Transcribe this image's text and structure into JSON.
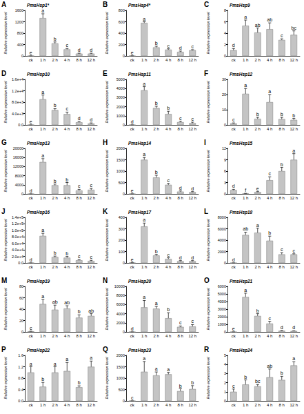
{
  "chart_data": [
    {
      "type": "bar",
      "panel": "A",
      "title": "PmsHsp1*",
      "ylabel": "Relative expression level",
      "color": "#c4c4c4",
      "grid": false,
      "categories": [
        "ck",
        "1 h",
        "2 h",
        "4 h",
        "8 h",
        "12 h"
      ],
      "values": [
        1,
        1330,
        440,
        230,
        80,
        80
      ],
      "errors": [
        0.2,
        150,
        50,
        30,
        15,
        15
      ],
      "letters": [
        "e",
        "a",
        "b",
        "c",
        "d",
        "d"
      ],
      "ylim": [
        0,
        1600
      ],
      "yticks": [
        0,
        400,
        800,
        1200,
        1600
      ]
    },
    {
      "type": "bar",
      "panel": "B",
      "title": "PmsHsp4*",
      "ylabel": "Relative expression level",
      "color": "#c4c4c4",
      "grid": false,
      "categories": [
        "ck",
        "1 h",
        "2 h",
        "4 h",
        "8 h",
        "12 h"
      ],
      "values": [
        1,
        580,
        150,
        110,
        70,
        100
      ],
      "errors": [
        0.2,
        20,
        20,
        15,
        15,
        10
      ],
      "letters": [
        "e",
        "a",
        "b",
        "c",
        "d",
        "c"
      ],
      "ylim": [
        0,
        800
      ],
      "yticks": [
        0,
        200,
        400,
        600,
        800
      ]
    },
    {
      "type": "bar",
      "panel": "C",
      "title": "PmsHsp9",
      "ylabel": "Relative expression level",
      "color": "#c4c4c4",
      "grid": false,
      "categories": [
        "ck",
        "1 h",
        "2 h",
        "4 h",
        "8 h",
        "12 h"
      ],
      "values": [
        1,
        5.3,
        4.1,
        4.7,
        2.8,
        3.7
      ],
      "errors": [
        0.3,
        1.0,
        0.8,
        1.1,
        0.2,
        0.7
      ],
      "letters": [
        "d",
        "a",
        "ab",
        "ab",
        "c",
        "bc"
      ],
      "ylim": [
        0,
        8
      ],
      "yticks": [
        0,
        2,
        4,
        6,
        8
      ]
    },
    {
      "type": "bar",
      "panel": "D",
      "title": "PmsHsp10",
      "ylabel": "Relative expression level",
      "color": "#c4c4c4",
      "grid": false,
      "categories": [
        "ck",
        "1 h",
        "2 h",
        "4 h",
        "8 h",
        "12 h"
      ],
      "values": [
        1,
        9000,
        5200,
        3800,
        900,
        500
      ],
      "errors": [
        0.2,
        1500,
        500,
        700,
        300,
        200
      ],
      "letters": [
        "e",
        "a",
        "b",
        "c",
        "d",
        "d"
      ],
      "ylim": [
        0,
        16000
      ],
      "yticks": [
        {
          "value": 0,
          "label": "0.0"
        },
        {
          "value": 4000,
          "label": "4.0e+3"
        },
        {
          "value": 8000,
          "label": "8.0e+3"
        },
        {
          "value": 12000,
          "label": "1.2e+4"
        },
        {
          "value": 16000,
          "label": "1.6e+4"
        }
      ]
    },
    {
      "type": "bar",
      "panel": "E",
      "title": "PmsHsp11",
      "ylabel": "Relative expression level",
      "color": "#c4c4c4",
      "grid": false,
      "categories": [
        "ck",
        "1 h",
        "2 h",
        "4 h",
        "8 h",
        "12 h"
      ],
      "values": [
        1,
        3800,
        1850,
        1200,
        300,
        200
      ],
      "errors": [
        0.2,
        400,
        200,
        300,
        100,
        100
      ],
      "letters": [
        "d",
        "a",
        "b",
        "b",
        "c",
        "c"
      ],
      "ylim": [
        0,
        5000
      ],
      "yticks": [
        0,
        1000,
        2000,
        3000,
        4000,
        5000
      ]
    },
    {
      "type": "bar",
      "panel": "F",
      "title": "PmsHsp12",
      "ylabel": "Relative expression level",
      "color": "#c4c4c4",
      "grid": false,
      "categories": [
        "ck",
        "1 h",
        "2 h",
        "4 h",
        "8 h",
        "12 h"
      ],
      "values": [
        1,
        20.5,
        4,
        15,
        3.8,
        3.3
      ],
      "errors": [
        0.3,
        3.5,
        1,
        5,
        1.2,
        1
      ],
      "letters": [
        "c",
        "a",
        "b",
        "a",
        "b",
        "b"
      ],
      "ylim": [
        0,
        30
      ],
      "yticks": [
        0,
        10,
        20,
        30
      ]
    },
    {
      "type": "bar",
      "panel": "G",
      "title": "PmsHsp13",
      "ylabel": "Relative expression level",
      "color": "#c4c4c4",
      "grid": false,
      "categories": [
        "ck",
        "1 h",
        "2 h",
        "4 h",
        "8 h",
        "12 h"
      ],
      "values": [
        1,
        14000,
        3800,
        3800,
        1500,
        1800
      ],
      "errors": [
        0.2,
        1500,
        500,
        1200,
        500,
        600
      ],
      "letters": [
        "d",
        "a",
        "b",
        "b",
        "c",
        "c"
      ],
      "ylim": [
        0,
        20000
      ],
      "yticks": [
        0,
        4000,
        8000,
        12000,
        16000,
        20000
      ]
    },
    {
      "type": "bar",
      "panel": "H",
      "title": "PmsHsp14",
      "ylabel": "Relative expression level",
      "color": "#c4c4c4",
      "grid": false,
      "categories": [
        "ck",
        "1 h",
        "2 h",
        "4 h",
        "8 h",
        "12 h"
      ],
      "values": [
        1,
        1500,
        720,
        400,
        100,
        80
      ],
      "errors": [
        0.2,
        100,
        100,
        60,
        30,
        20
      ],
      "letters": [
        "e",
        "a",
        "b",
        "c",
        "d",
        "d"
      ],
      "ylim": [
        0,
        2000
      ],
      "yticks": [
        0,
        500,
        1000,
        1500,
        2000
      ]
    },
    {
      "type": "bar",
      "panel": "I",
      "title": "PmsHsp15",
      "ylabel": "Relative expression level",
      "color": "#c4c4c4",
      "grid": false,
      "categories": [
        "ck",
        "1 h",
        "2 h",
        "4 h",
        "8 h",
        "12 h"
      ],
      "values": [
        1,
        0.1,
        0.5,
        3.6,
        6,
        9
      ],
      "errors": [
        0.2,
        0.05,
        0.1,
        0.9,
        1,
        1.6
      ],
      "letters": [
        "d",
        "f",
        "e",
        "c",
        "b",
        "a"
      ],
      "ylim": [
        0,
        12
      ],
      "yticks": [
        0,
        3,
        6,
        9,
        12
      ]
    },
    {
      "type": "bar",
      "panel": "J",
      "title": "PmsHsp16",
      "ylabel": "Relative expression level",
      "color": "#c4c4c4",
      "grid": false,
      "categories": [
        "ck",
        "1 h",
        "2 h",
        "4 h",
        "8 h",
        "12 h"
      ],
      "values": [
        1,
        83000,
        18000,
        16000,
        8000,
        6000
      ],
      "errors": [
        0.2,
        8000,
        3000,
        4000,
        2000,
        2000
      ],
      "letters": [
        "d",
        "a",
        "b",
        "b",
        "c",
        "c"
      ],
      "ylim": [
        0,
        140000
      ],
      "yticks": [
        {
          "value": 0,
          "label": "0.0"
        },
        {
          "value": 20000,
          "label": "2.0e+4"
        },
        {
          "value": 40000,
          "label": "4.0e+4"
        },
        {
          "value": 60000,
          "label": "6.0e+4"
        },
        {
          "value": 80000,
          "label": "8.0e+4"
        },
        {
          "value": 100000,
          "label": "1.0e+5"
        },
        {
          "value": 120000,
          "label": "1.2e+5"
        },
        {
          "value": 140000,
          "label": "1.4e+5"
        }
      ]
    },
    {
      "type": "bar",
      "panel": "K",
      "title": "PmsHsp17",
      "ylabel": "Relative expression level",
      "color": "#c4c4c4",
      "grid": false,
      "categories": [
        "ck",
        "1 h",
        "2 h",
        "4 h",
        "8 h",
        "12 h"
      ],
      "values": [
        1,
        320,
        65,
        35,
        15,
        15
      ],
      "errors": [
        0.2,
        30,
        10,
        10,
        5,
        5
      ],
      "letters": [
        "e",
        "a",
        "b",
        "c",
        "d",
        "d"
      ],
      "ylim": [
        0,
        400
      ],
      "yticks": [
        0,
        100,
        200,
        300,
        400
      ]
    },
    {
      "type": "bar",
      "panel": "L",
      "title": "PmsHsp18",
      "ylabel": "Relative expression level",
      "color": "#c4c4c4",
      "grid": false,
      "categories": [
        "ck",
        "1 h",
        "2 h",
        "4 h",
        "8 h",
        "12 h"
      ],
      "values": [
        1,
        4900,
        5300,
        3900,
        1500,
        1500
      ],
      "errors": [
        0.2,
        500,
        800,
        800,
        300,
        100
      ],
      "letters": [
        "d",
        "ab",
        "a",
        "b",
        "c",
        "c"
      ],
      "ylim": [
        0,
        8000
      ],
      "yticks": [
        0,
        2000,
        4000,
        6000,
        8000
      ]
    },
    {
      "type": "bar",
      "panel": "M",
      "title": "PmsHsp19",
      "ylabel": "Relative expression level",
      "color": "#c4c4c4",
      "grid": false,
      "categories": [
        "ck",
        "1 h",
        "2 h",
        "4 h",
        "8 h",
        "12 h"
      ],
      "values": [
        1,
        49,
        39,
        41,
        25,
        28
      ],
      "errors": [
        0.3,
        8,
        8,
        5,
        5,
        4
      ],
      "letters": [
        "c",
        "a",
        "ab",
        "ab",
        "b",
        "ab"
      ],
      "ylim": [
        0,
        80
      ],
      "yticks": [
        0,
        20,
        40,
        60,
        80
      ]
    },
    {
      "type": "bar",
      "panel": "N",
      "title": "PmsHsp20",
      "ylabel": "Relative expression level",
      "color": "#c4c4c4",
      "grid": false,
      "categories": [
        "ck",
        "1 h",
        "2 h",
        "4 h",
        "8 h",
        "12 h"
      ],
      "values": [
        1,
        5400,
        5100,
        3000,
        1100,
        1200
      ],
      "errors": [
        0.2,
        1500,
        500,
        1200,
        200,
        400
      ],
      "letters": [
        "d",
        "a",
        "a",
        "b",
        "c",
        "c"
      ],
      "ylim": [
        0,
        10000
      ],
      "yticks": [
        0,
        2000,
        4000,
        6000,
        8000,
        10000
      ]
    },
    {
      "type": "bar",
      "panel": "O",
      "title": "PmsHsp21",
      "ylabel": "Relative expression level",
      "color": "#c4c4c4",
      "grid": false,
      "categories": [
        "ck",
        "1 h",
        "2 h",
        "4 h",
        "8 h",
        "12 h"
      ],
      "values": [
        1,
        4600,
        2100,
        1100,
        150,
        120
      ],
      "errors": [
        0.2,
        500,
        300,
        300,
        50,
        30
      ],
      "letters": [
        "e",
        "a",
        "b",
        "c",
        "d",
        "d"
      ],
      "ylim": [
        0,
        6000
      ],
      "yticks": [
        0,
        1000,
        2000,
        3000,
        4000,
        5000,
        6000
      ]
    },
    {
      "type": "bar",
      "panel": "P",
      "title": "PmsHsp22",
      "ylabel": "Relative expression level",
      "color": "#c4c4c4",
      "grid": false,
      "categories": [
        "ck",
        "1 h",
        "2 h",
        "4 h",
        "8 h",
        "12 h"
      ],
      "values": [
        1.0,
        0.5,
        1.0,
        1.05,
        0.48,
        1.2
      ],
      "errors": [
        0.2,
        0.15,
        0.2,
        0.3,
        0.05,
        0.2
      ],
      "letters": [
        "a",
        "b",
        "a",
        "a",
        "b",
        "a"
      ],
      "ylim": [
        0,
        1.6
      ],
      "yticks": [
        {
          "value": 0,
          "label": "0.0"
        },
        {
          "value": 0.4,
          "label": "0.4"
        },
        {
          "value": 0.8,
          "label": "0.8"
        },
        {
          "value": 1.2,
          "label": "1.2"
        },
        {
          "value": 1.6,
          "label": "1.6"
        }
      ]
    },
    {
      "type": "bar",
      "panel": "Q",
      "title": "PmsHsp23",
      "ylabel": "Relative expression level",
      "color": "#c4c4c4",
      "grid": false,
      "categories": [
        "ck",
        "1 h",
        "2 h",
        "4 h",
        "8 h",
        "12 h"
      ],
      "values": [
        1,
        1280,
        1120,
        1170,
        430,
        520
      ],
      "errors": [
        0.2,
        450,
        150,
        80,
        100,
        150
      ],
      "letters": [
        "c",
        "a",
        "a",
        "a",
        "b",
        "b"
      ],
      "ylim": [
        0,
        2000
      ],
      "yticks": [
        0,
        500,
        1000,
        1500,
        2000
      ]
    },
    {
      "type": "bar",
      "panel": "R",
      "title": "PmsHsp24",
      "ylabel": "Relative expression level",
      "color": "#c4c4c4",
      "grid": false,
      "categories": [
        "ck",
        "1 h",
        "2 h",
        "4 h",
        "8 h",
        "12 h"
      ],
      "values": [
        1,
        1.8,
        1.6,
        2.6,
        2.3,
        3.9
      ],
      "errors": [
        0.3,
        0.5,
        0.2,
        0.9,
        0.4,
        0.4
      ],
      "letters": [
        "c",
        "b",
        "bc",
        "ab",
        "b",
        "a"
      ],
      "ylim": [
        0,
        5
      ],
      "yticks": [
        0,
        1,
        2,
        3,
        4,
        5
      ]
    }
  ]
}
